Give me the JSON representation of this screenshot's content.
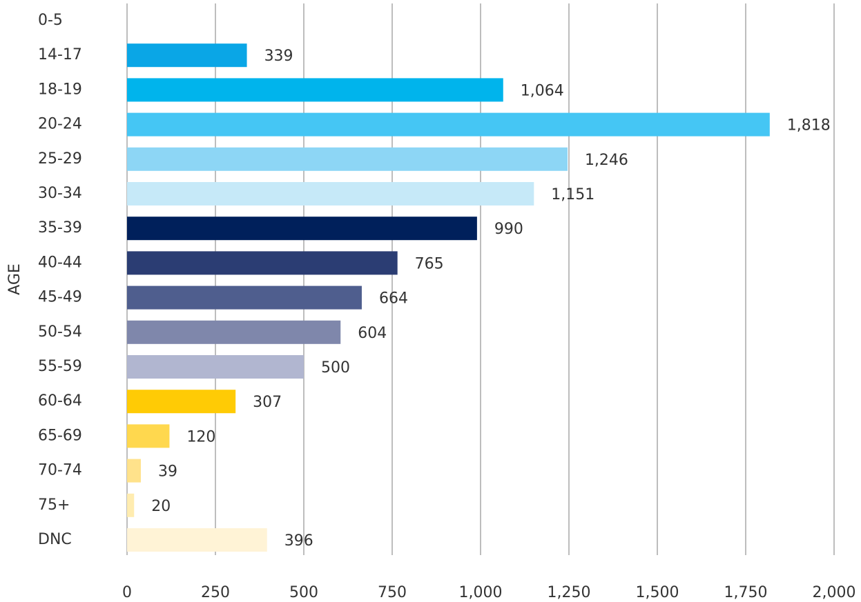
{
  "chart_data": {
    "type": "bar",
    "orientation": "horizontal",
    "y_label": "AGE",
    "categories": [
      "0-5",
      "14-17",
      "18-19",
      "20-24",
      "25-29",
      "30-34",
      "35-39",
      "40-44",
      "45-49",
      "50-54",
      "55-59",
      "60-64",
      "65-69",
      "70-74",
      "75+",
      "DNC"
    ],
    "values": [
      null,
      339,
      1064,
      1818,
      1246,
      1151,
      990,
      765,
      664,
      604,
      500,
      307,
      120,
      39,
      20,
      396
    ],
    "value_labels": [
      null,
      "339",
      "1,064",
      "1,818",
      "1,246",
      "1,151",
      "990",
      "765",
      "664",
      "604",
      "500",
      "307",
      "120",
      "39",
      "20",
      "396"
    ],
    "colors": [
      "#0aa6e6",
      "#0aa6e6",
      "#00b4ec",
      "#45c6f4",
      "#8dd6f5",
      "#c6e9f8",
      "#00205b",
      "#2b3d73",
      "#4f5e8e",
      "#7f87ab",
      "#b1b6d0",
      "#ffcb05",
      "#ffd84e",
      "#ffe28b",
      "#ffecb0",
      "#fff3d6"
    ],
    "xlim": [
      0,
      2000
    ],
    "xticks": [
      0,
      250,
      500,
      750,
      {
        "value": 1000,
        "label": "1,000"
      },
      {
        "value": 1250,
        "label": "1,250"
      },
      {
        "value": 1500,
        "label": "1,500"
      },
      {
        "value": 1750,
        "label": "1,750"
      },
      {
        "value": 2000,
        "label": "2,000"
      }
    ],
    "grid": true
  }
}
